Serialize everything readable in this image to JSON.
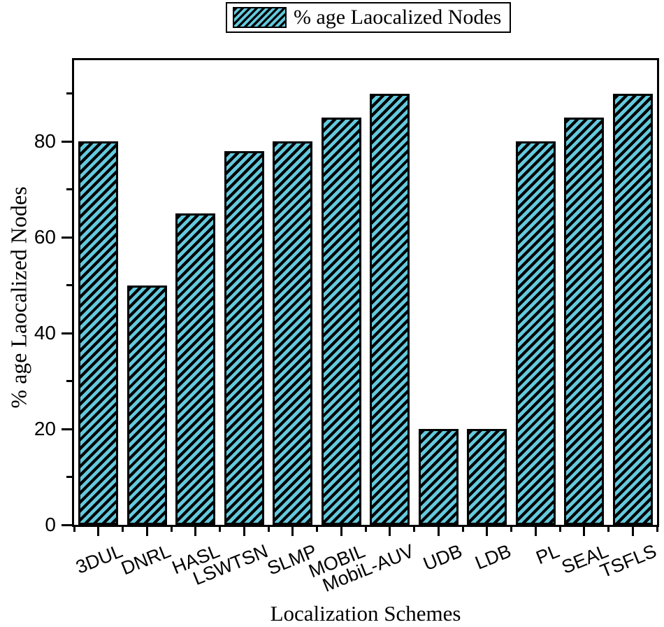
{
  "legend": {
    "label": "% age Laocalized Nodes"
  },
  "chart_data": {
    "type": "bar",
    "title": "",
    "categories": [
      "3DUL",
      "DNRL",
      "HASL",
      "LSWTSN",
      "SLMP",
      "MOBIL",
      "MobiL-AUV",
      "UDB",
      "LDB",
      "PL",
      "SEAL",
      "TSFLS"
    ],
    "values": [
      80,
      50,
      65,
      78,
      80,
      85,
      90,
      20,
      20,
      80,
      85,
      90
    ],
    "series_name": "% age Laocalized Nodes",
    "xlabel": "Localization Schemes",
    "ylabel": "% age Laocalized Nodes",
    "ylim": [
      0,
      97
    ],
    "yticks_major": [
      0,
      20,
      40,
      60,
      80
    ],
    "yticks_minor": [
      10,
      30,
      50,
      70,
      90
    ],
    "grid": false,
    "legend_position": "top-center",
    "bar_fill_color": "#64c9dd",
    "hatch_color": "#000000",
    "hatch_style": "diagonal-forward",
    "frame_color": "#000000",
    "background_color": "#ffffff"
  }
}
